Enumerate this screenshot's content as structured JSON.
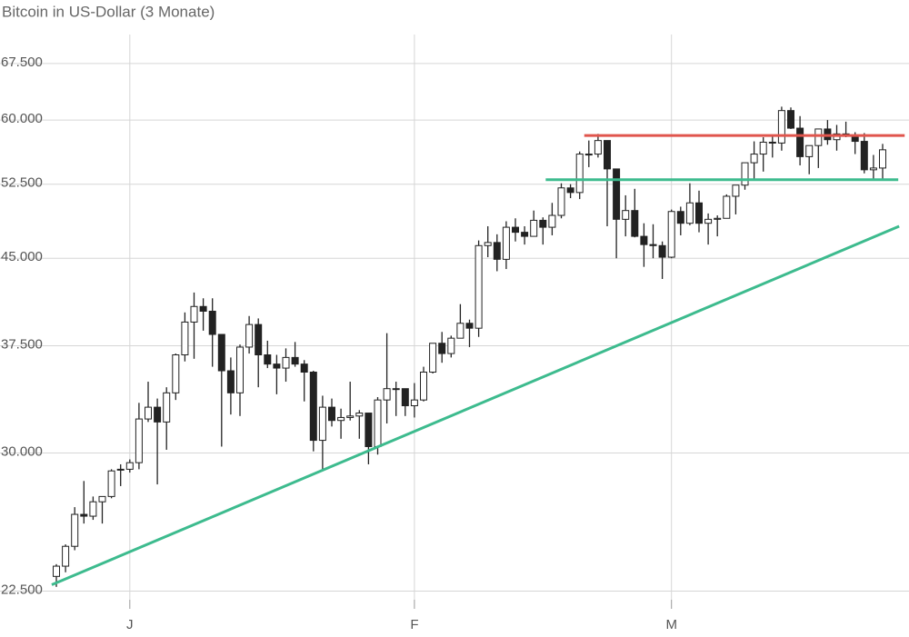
{
  "chart_data": {
    "type": "candlestick",
    "title": "Bitcoin in US-Dollar (3 Monate)",
    "log_scale": true,
    "grid": true,
    "up_color": "#ffffff",
    "down_color": "#222222",
    "edge_color": "#222222",
    "ylim": [
      22100,
      71700
    ],
    "yticks": [
      {
        "value": 22500,
        "label": "22.500"
      },
      {
        "value": 30000,
        "label": "30.000"
      },
      {
        "value": 37500,
        "label": "37.500"
      },
      {
        "value": 45000,
        "label": "45.000"
      },
      {
        "value": 52500,
        "label": "52.500"
      },
      {
        "value": 60000,
        "label": "60.000"
      },
      {
        "value": 67500,
        "label": "67.500"
      }
    ],
    "categories": [
      null,
      null,
      null,
      null,
      null,
      null,
      null,
      null,
      "J",
      null,
      null,
      null,
      null,
      null,
      null,
      null,
      null,
      null,
      null,
      null,
      null,
      null,
      null,
      null,
      null,
      null,
      null,
      null,
      null,
      null,
      null,
      null,
      null,
      null,
      null,
      null,
      null,
      null,
      null,
      "F",
      null,
      null,
      null,
      null,
      null,
      null,
      null,
      null,
      null,
      null,
      null,
      null,
      null,
      null,
      null,
      null,
      null,
      null,
      null,
      null,
      null,
      null,
      null,
      null,
      null,
      null,
      null,
      "M",
      null,
      null,
      null,
      null,
      null,
      null,
      null,
      null,
      null,
      null,
      null,
      null,
      null,
      null,
      null,
      null,
      null,
      null,
      null,
      null,
      null,
      null,
      null
    ],
    "open": [
      23200,
      23700,
      24700,
      26400,
      26300,
      27100,
      27400,
      29000,
      29000,
      29400,
      32200,
      33000,
      32000,
      34000,
      36800,
      39400,
      40700,
      40300,
      38400,
      35600,
      34000,
      37400,
      39200,
      36800,
      36100,
      35800,
      36600,
      36100,
      35500,
      30800,
      33000,
      32100,
      32300,
      32400,
      32600,
      30400,
      33500,
      34300,
      34300,
      33100,
      33500,
      35500,
      37700,
      36900,
      38100,
      39300,
      38900,
      46200,
      46500,
      44900,
      48000,
      47500,
      47100,
      48700,
      48000,
      49200,
      52100,
      51600,
      55900,
      55900,
      57500,
      54200,
      48800,
      49700,
      47100,
      46300,
      46200,
      45100,
      49600,
      48400,
      50500,
      48400,
      48800,
      48900,
      51200,
      52400,
      54900,
      55900,
      57300,
      57200,
      61200,
      59000,
      55600,
      56900,
      58900,
      57600,
      58300,
      58100,
      57400,
      54100,
      54300
    ],
    "high": [
      23800,
      24800,
      26800,
      28300,
      27400,
      27400,
      29000,
      29300,
      29600,
      33300,
      34800,
      33600,
      34400,
      36900,
      40200,
      41900,
      41400,
      41400,
      38400,
      36600,
      37600,
      39900,
      39700,
      37900,
      36800,
      37300,
      37800,
      36400,
      35600,
      33800,
      33600,
      32900,
      34800,
      32800,
      32600,
      33700,
      38500,
      34800,
      34300,
      34700,
      35900,
      37700,
      38600,
      38300,
      40900,
      39600,
      46700,
      48100,
      47300,
      48600,
      48900,
      48100,
      49700,
      49000,
      50500,
      52600,
      52500,
      56200,
      57500,
      58300,
      57500,
      54200,
      51300,
      52000,
      48400,
      48300,
      46600,
      49800,
      50100,
      52600,
      51800,
      49400,
      49200,
      51400,
      52400,
      54900,
      57400,
      57900,
      58000,
      61700,
      61600,
      60500,
      56900,
      58900,
      60000,
      59400,
      59800,
      58500,
      58400,
      55800,
      57100
    ],
    "low": [
      22700,
      23400,
      24500,
      25900,
      26100,
      25900,
      27300,
      28000,
      28800,
      29000,
      32000,
      28100,
      30200,
      33500,
      36300,
      36500,
      38700,
      35900,
      30400,
      32500,
      32400,
      36900,
      34400,
      35800,
      33900,
      34800,
      35900,
      33400,
      30100,
      28900,
      31700,
      30900,
      32100,
      30900,
      29300,
      29900,
      31900,
      32400,
      32400,
      32300,
      33400,
      35400,
      36200,
      36600,
      38100,
      37400,
      38200,
      45100,
      43800,
      44000,
      46600,
      46300,
      47100,
      46300,
      47200,
      48900,
      51000,
      50900,
      54400,
      55500,
      48100,
      45000,
      47100,
      47000,
      44200,
      45000,
      43100,
      45000,
      47200,
      48200,
      47500,
      46300,
      47100,
      48900,
      49300,
      51900,
      53100,
      53900,
      55500,
      56300,
      58900,
      54600,
      53600,
      54300,
      57000,
      56300,
      57900,
      55900,
      53700,
      53100,
      52900
    ],
    "close": [
      23700,
      24700,
      26400,
      26300,
      27100,
      27400,
      28900,
      29000,
      29400,
      32200,
      33000,
      32000,
      34000,
      36800,
      39400,
      40700,
      40300,
      38400,
      35600,
      34000,
      37400,
      39200,
      36800,
      36100,
      35800,
      36600,
      36100,
      35500,
      30800,
      33000,
      32100,
      32300,
      32400,
      32600,
      30400,
      33500,
      34300,
      34300,
      33100,
      33500,
      35500,
      37700,
      36900,
      38100,
      39300,
      38900,
      46200,
      46500,
      44900,
      48000,
      47500,
      47100,
      48700,
      48000,
      49200,
      52100,
      51600,
      55900,
      55900,
      57500,
      54200,
      48800,
      49700,
      47100,
      46300,
      46200,
      45100,
      49600,
      48400,
      50500,
      48400,
      48800,
      48900,
      51200,
      52400,
      54900,
      55900,
      57300,
      57200,
      61200,
      59000,
      55600,
      56900,
      58900,
      57600,
      58300,
      58100,
      57400,
      54100,
      54300,
      56400
    ],
    "lines": [
      {
        "color": "#e0554d",
        "x": [
          57.5,
          92.4
        ],
        "y": [
          58100,
          58100
        ]
      },
      {
        "color": "#3dbb8e",
        "x": [
          53.3,
          91.7
        ],
        "y": [
          53000,
          53000
        ]
      },
      {
        "color": "#3dbb8e",
        "x": [
          -0.5,
          91.8
        ],
        "y": [
          22800,
          48100
        ]
      }
    ]
  }
}
